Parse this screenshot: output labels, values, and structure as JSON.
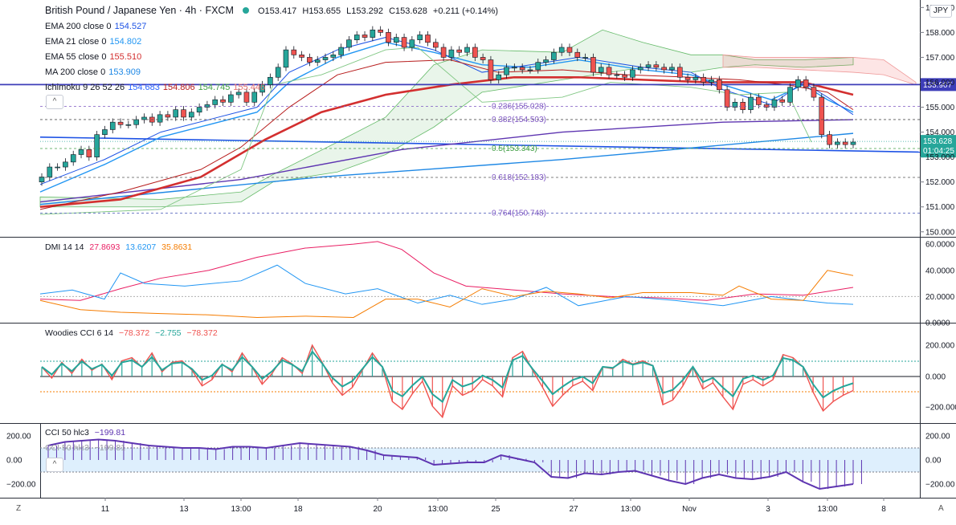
{
  "header": {
    "symbol_title": "British Pound / Japanese Yen · 4h · FXCM",
    "ohlc": {
      "o": "O153.417",
      "h": "H153.655",
      "l": "L153.292",
      "c": "C153.628",
      "chg": "+0.211 (+0.14%)"
    }
  },
  "currency_badge": "JPY",
  "indicators": [
    {
      "label": "EMA 200 close 0",
      "values": [
        "154.527"
      ],
      "colors": [
        "#1e53e5"
      ]
    },
    {
      "label": "EMA 21 close 0",
      "values": [
        "154.802"
      ],
      "colors": [
        "#2196f3"
      ]
    },
    {
      "label": "EMA 55 close 0",
      "values": [
        "155.510"
      ],
      "colors": [
        "#d32f2f"
      ]
    },
    {
      "label": "MA 200 close 0",
      "values": [
        "153.909"
      ],
      "colors": [
        "#1e88e5"
      ]
    },
    {
      "label": "Ichimoku 9 26 52 26",
      "values": [
        "154.683",
        "154.806",
        "154.745",
        "155.446"
      ],
      "colors": [
        "#2962ff",
        "#b71c1c",
        "#43a047",
        "#e57373"
      ]
    }
  ],
  "price_axis": {
    "ticks": [
      "159.000",
      "158.000",
      "157.000",
      "156.000",
      "155.000",
      "154.000",
      "153.000",
      "152.000",
      "151.000",
      "150.000"
    ],
    "last_price": "153.628",
    "countdown": "01:04:25",
    "hline_label": "155.907"
  },
  "fib_labels": [
    {
      "text": "0.236(155.028)",
      "color": "#7e57c2"
    },
    {
      "text": "0.382(154.503)",
      "color": "#7e57c2"
    },
    {
      "text": "0.5(153.343)",
      "color": "#43a047"
    },
    {
      "text": "0.618(152.183)",
      "color": "#7e57c2"
    },
    {
      "text": "0.764(150.748)",
      "color": "#7e57c2"
    }
  ],
  "x_axis": {
    "labels": [
      "11",
      "13",
      "13:00",
      "18",
      "20",
      "13:00",
      "25",
      "27",
      "13:00",
      "Nov",
      "3",
      "13:00",
      "8"
    ]
  },
  "dmi": {
    "legend": "DMI 14 14",
    "values": [
      "27.8693",
      "13.6207",
      "35.8631"
    ],
    "colors": [
      "#e91e63",
      "#2196f3",
      "#f57c00"
    ],
    "ticks": [
      "60.0000",
      "40.0000",
      "20.0000",
      "0.0000"
    ]
  },
  "woodies": {
    "legend": "Woodies CCI 6 14",
    "values": [
      "−78.372",
      "−2.755",
      "−78.372"
    ],
    "colors": [
      "#ef5350",
      "#26a69a",
      "#ef5350"
    ],
    "ticks": [
      "200.000",
      "0.000",
      "−200.000"
    ]
  },
  "cci": {
    "legend": "CCI 50 hlc3",
    "value": "−199.81",
    "legend_echo": "CCI 50 hlc3",
    "value_echo": "−199.81",
    "ticks_left": [
      "200.00",
      "0.00",
      "−200.00"
    ],
    "ticks_right": [
      "200.00",
      "0.00",
      "−200.00"
    ]
  },
  "buttons": {
    "collapse": "^",
    "collapse2": "^",
    "zoom_left": "Z",
    "auto": "A"
  },
  "chart_data": {
    "type": "line",
    "title": "British Pound / Japanese Yen · 4h · FXCM",
    "ylim": [
      149.8,
      159.3
    ],
    "price_series_approx": [
      152.4,
      152.9,
      153.6,
      154.1,
      154.0,
      154.5,
      154.8,
      155.6,
      156.6,
      156.8,
      156.9,
      157.2,
      157.8,
      158.0,
      157.7,
      157.2,
      157.1,
      156.0,
      156.1,
      156.7,
      157.4,
      156.6,
      156.2,
      156.5,
      156.7,
      156.7,
      156.2,
      155.6,
      154.8,
      155.1,
      155.8,
      155.5,
      153.4,
      153.6
    ],
    "ema55_approx": [
      151.6,
      151.9,
      152.3,
      152.8,
      153.4,
      154.0,
      154.6,
      155.2,
      155.7,
      156.0,
      156.1,
      156.2,
      156.3,
      156.3,
      156.2,
      156.1,
      156.0,
      155.5
    ],
    "horizontal_level": 155.907
  }
}
